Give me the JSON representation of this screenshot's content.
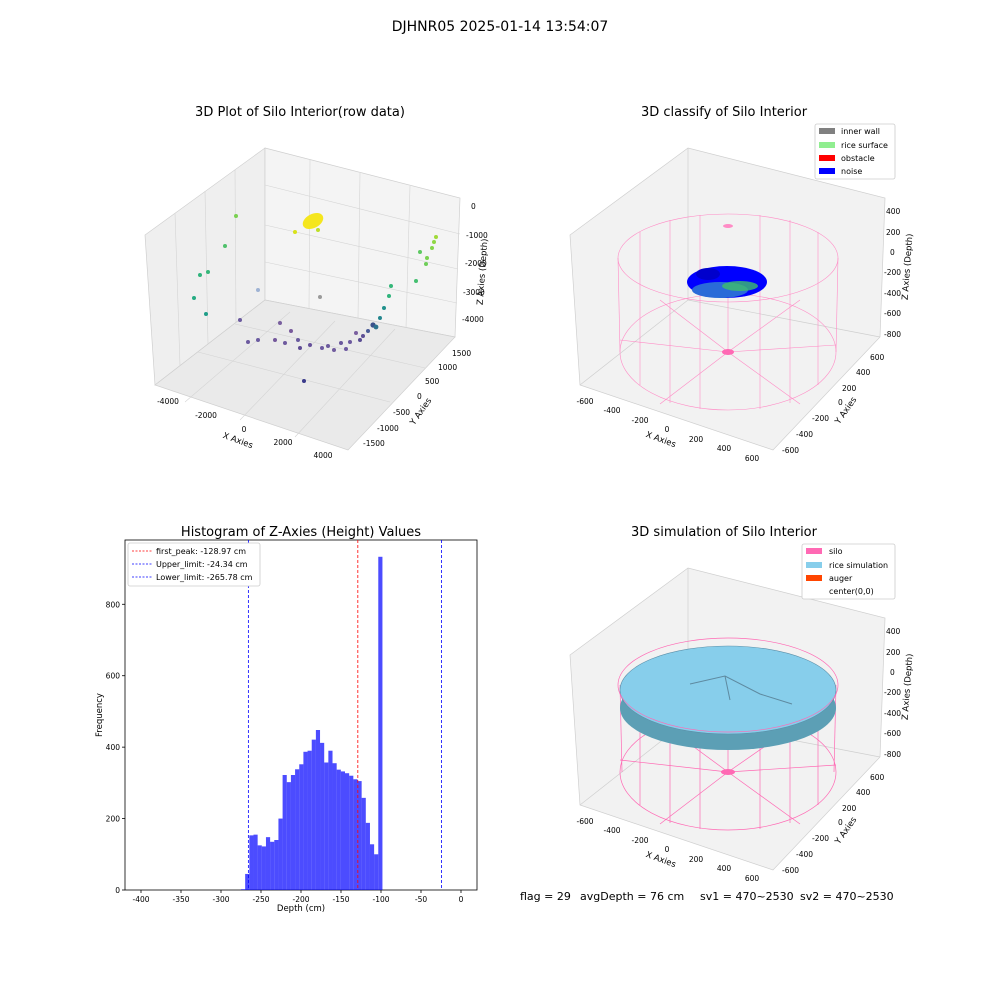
{
  "figure": {
    "suptitle": "DJHNR05 2025-01-14 13:54:07",
    "info": [
      "flag = 29",
      "avgDepth = 76 cm",
      "sv1 = 470~2530",
      "sv2 = 470~2530"
    ]
  },
  "chart_data": [
    {
      "type": "scatter",
      "title": "3D Plot of Silo Interior(row data)",
      "xlabel": "X Axies",
      "ylabel": "Y Axies",
      "zlabel": "Z Axies (Depth)",
      "x_ticks": [
        "-4000",
        "-2000",
        "0",
        "2000",
        "4000"
      ],
      "y_ticks": [
        "-1500",
        "-1000",
        "-500",
        "0",
        "500",
        "1000",
        "1500"
      ],
      "z_ticks": [
        "0",
        "-1000",
        "-2000",
        "-3000",
        "-4000"
      ],
      "colormap": "viridis by depth"
    },
    {
      "type": "scatter",
      "title": "3D classify of Silo Interior",
      "xlabel": "X Axies",
      "ylabel": "Y Axies",
      "zlabel": "Z Axies (Depth)",
      "x_ticks": [
        "-600",
        "-400",
        "-200",
        "0",
        "200",
        "400",
        "600"
      ],
      "y_ticks": [
        "-600",
        "-400",
        "-200",
        "0",
        "200",
        "400",
        "600"
      ],
      "z_ticks": [
        "400",
        "200",
        "0",
        "-200",
        "-400",
        "-600",
        "-800"
      ],
      "legend": [
        {
          "label": "inner wall",
          "color": "#808080"
        },
        {
          "label": "rice surface",
          "color": "#90ee90"
        },
        {
          "label": "obstacle",
          "color": "#ff0000"
        },
        {
          "label": "noise",
          "color": "#0000ff"
        }
      ],
      "legend_position": "top-right"
    },
    {
      "type": "bar",
      "title": "Histogram of Z-Axies (Height) Values",
      "xlabel": "Depth (cm)",
      "ylabel": "Frequency",
      "xlim": [
        -420,
        20
      ],
      "ylim": [
        0,
        980
      ],
      "x_ticks": [
        -400,
        -350,
        -300,
        -250,
        -200,
        -150,
        -100,
        -50,
        0
      ],
      "y_ticks": [
        0,
        200,
        400,
        600,
        800
      ],
      "bin_width": 5.2,
      "bin_start": -275,
      "values": [
        2,
        45,
        153,
        155,
        125,
        122,
        148,
        135,
        140,
        200,
        322,
        302,
        322,
        338,
        352,
        387,
        390,
        421,
        448,
        412,
        357,
        390,
        355,
        337,
        332,
        327,
        320,
        310,
        305,
        258,
        188,
        128,
        100,
        933
      ],
      "color": "#0000ff",
      "lines": [
        {
          "label": "first_peak: -128.97 cm",
          "value": -128.97,
          "color": "#ff0000"
        },
        {
          "label": "Upper_limit: -24.34 cm",
          "value": -24.34,
          "color": "#0000ff"
        },
        {
          "label": "Lower_limit: -265.78 cm",
          "value": -265.78,
          "color": "#0000ff"
        }
      ],
      "legend_position": "top-left"
    },
    {
      "type": "surface",
      "title": "3D simulation of Silo Interior",
      "xlabel": "X Axies",
      "ylabel": "Y Axies",
      "zlabel": "Z Axies (Depth)",
      "x_ticks": [
        "-600",
        "-400",
        "-200",
        "0",
        "200",
        "400",
        "600"
      ],
      "y_ticks": [
        "-600",
        "-400",
        "-200",
        "0",
        "200",
        "400",
        "600"
      ],
      "z_ticks": [
        "400",
        "200",
        "0",
        "-200",
        "-400",
        "-600",
        "-800"
      ],
      "legend": [
        {
          "label": "silo",
          "color": "#ff69b4"
        },
        {
          "label": "rice simulation",
          "color": "#87ceeb"
        },
        {
          "label": "auger",
          "color": "#ff4500"
        },
        {
          "label": "center(0,0)",
          "color": "#ffffff"
        }
      ],
      "legend_position": "top-right"
    }
  ]
}
